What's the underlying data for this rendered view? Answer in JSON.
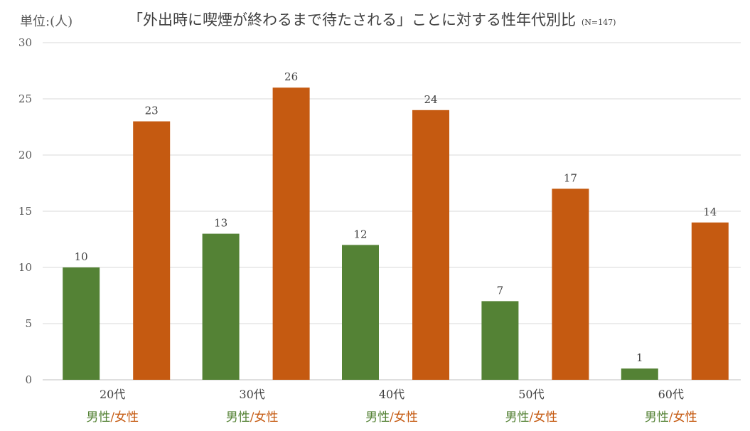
{
  "unit_label": "単位:(人)",
  "title": "「外出時に喫煙が終わるまで待たされる」ことに対する性年代別比",
  "subtitle": "(N=147)",
  "sex_label": {
    "male": "男性",
    "separator": "/",
    "female": "女性"
  },
  "colors": {
    "male": "#548235",
    "female": "#C55A11",
    "grid": "#D9D9D9",
    "axis": "#BFBFBF",
    "text": "#404040"
  },
  "chart_data": {
    "type": "bar",
    "categories": [
      "20代",
      "30代",
      "40代",
      "50代",
      "60代"
    ],
    "series": [
      {
        "name": "男性",
        "values": [
          10,
          13,
          12,
          7,
          1
        ]
      },
      {
        "name": "女性",
        "values": [
          23,
          26,
          24,
          17,
          14
        ]
      }
    ],
    "ylim": [
      0,
      30
    ],
    "yticks": [
      0,
      5,
      10,
      15,
      20,
      25,
      30
    ],
    "grid": true,
    "data_labels": true
  }
}
